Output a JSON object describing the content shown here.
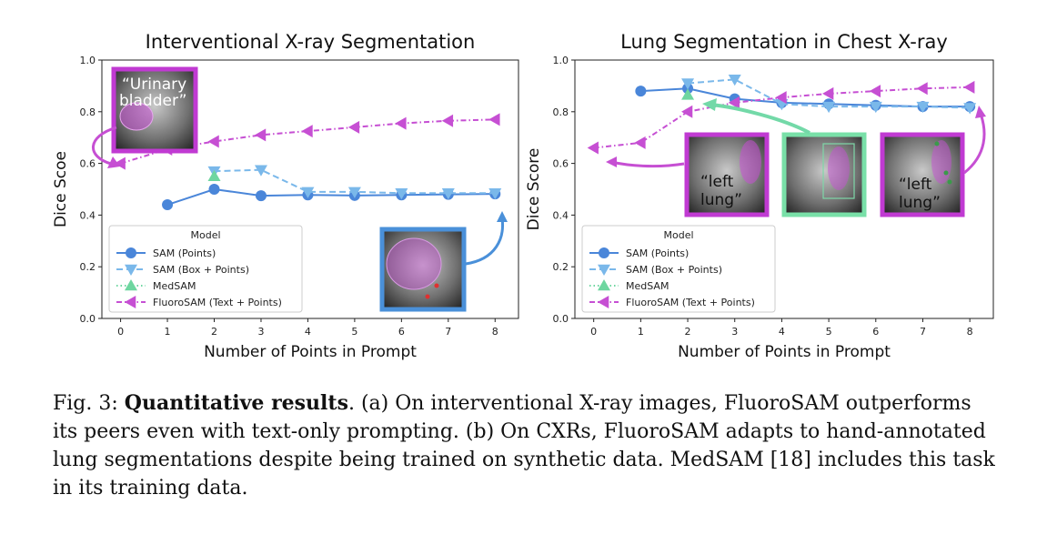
{
  "colors": {
    "sam_points": "#4a86d9",
    "sam_box": "#7ab8ea",
    "medsam": "#6ed6a0",
    "fluorosam": "#c64fd3",
    "green_arrow": "#73d9a8",
    "blue_frame": "#4a90d9",
    "purple_frame": "#c03ad2",
    "green_frame": "#79e0a8"
  },
  "chart_data": [
    {
      "type": "line",
      "title": "Interventional X-ray Segmentation",
      "xlabel": "Number of Points in Prompt",
      "ylabel": "Dice Scoe",
      "xlim": [
        -0.4,
        8.5
      ],
      "ylim": [
        0.0,
        1.0
      ],
      "xticks": [
        "0",
        "1",
        "2",
        "3",
        "4",
        "5",
        "6",
        "7",
        "8"
      ],
      "yticks": [
        "0.0",
        "0.2",
        "0.4",
        "0.6",
        "0.8",
        "1.0"
      ],
      "legend": {
        "title": "Model",
        "placement": "lower-left"
      },
      "series": [
        {
          "name": "SAM (Points)",
          "marker": "circle",
          "dash": "solid",
          "color_key": "sam_points",
          "x": [
            1,
            2,
            3,
            4,
            5,
            6,
            7,
            8
          ],
          "y": [
            0.44,
            0.5,
            0.475,
            0.478,
            0.476,
            0.478,
            0.48,
            0.482
          ]
        },
        {
          "name": "SAM (Box + Points)",
          "marker": "triangle-down",
          "dash": "dashed",
          "color_key": "sam_box",
          "x": [
            2,
            3,
            4,
            5,
            6,
            7,
            8
          ],
          "y": [
            0.57,
            0.575,
            0.49,
            0.49,
            0.485,
            0.485,
            0.485
          ]
        },
        {
          "name": "MedSAM",
          "marker": "triangle-up",
          "dash": "dotted",
          "color_key": "medsam",
          "x": [
            2
          ],
          "y": [
            0.55
          ]
        },
        {
          "name": "FluoroSAM (Text + Points)",
          "marker": "triangle-left",
          "dash": "dashdot",
          "color_key": "fluorosam",
          "x": [
            0,
            1,
            2,
            3,
            4,
            5,
            6,
            7,
            8
          ],
          "y": [
            0.6,
            0.655,
            0.685,
            0.71,
            0.725,
            0.74,
            0.755,
            0.765,
            0.77
          ]
        }
      ],
      "annotations": [
        {
          "label_lines": [
            "“Urinary",
            "bladder”"
          ]
        }
      ]
    },
    {
      "type": "line",
      "title": "Lung Segmentation in Chest X-ray",
      "xlabel": "Number of Points in Prompt",
      "ylabel": "Dice Score",
      "xlim": [
        -0.4,
        8.5
      ],
      "ylim": [
        0.0,
        1.0
      ],
      "xticks": [
        "0",
        "1",
        "2",
        "3",
        "4",
        "5",
        "6",
        "7",
        "8"
      ],
      "yticks": [
        "0.0",
        "0.2",
        "0.4",
        "0.6",
        "0.8",
        "1.0"
      ],
      "legend": {
        "title": "Model",
        "placement": "lower-left"
      },
      "series": [
        {
          "name": "SAM (Points)",
          "marker": "circle",
          "dash": "solid",
          "color_key": "sam_points",
          "x": [
            1,
            2,
            3,
            4,
            5,
            6,
            7,
            8
          ],
          "y": [
            0.88,
            0.89,
            0.85,
            0.835,
            0.83,
            0.825,
            0.82,
            0.82
          ]
        },
        {
          "name": "SAM (Box + Points)",
          "marker": "triangle-down",
          "dash": "dashed",
          "color_key": "sam_box",
          "x": [
            2,
            3,
            4,
            5,
            6,
            7,
            8
          ],
          "y": [
            0.91,
            0.925,
            0.83,
            0.82,
            0.82,
            0.82,
            0.815
          ]
        },
        {
          "name": "MedSAM",
          "marker": "triangle-up",
          "dash": "dotted",
          "color_key": "medsam",
          "x": [
            2
          ],
          "y": [
            0.865
          ]
        },
        {
          "name": "FluoroSAM (Text + Points)",
          "marker": "triangle-left",
          "dash": "dashdot",
          "color_key": "fluorosam",
          "x": [
            0,
            1,
            2,
            3,
            4,
            5,
            6,
            7,
            8
          ],
          "y": [
            0.66,
            0.68,
            0.8,
            0.835,
            0.855,
            0.87,
            0.88,
            0.89,
            0.895
          ]
        }
      ],
      "annotations": [
        {
          "label_lines": [
            "“left",
            "lung”"
          ]
        },
        {
          "label_lines": [
            "“left",
            "lung”"
          ]
        }
      ]
    }
  ],
  "caption": {
    "fig_label": "Fig. 3: ",
    "bold": "Quantitative results",
    "text": ". (a) On interventional X-ray images, FluoroSAM outperforms its peers even with text-only prompting. (b) On CXRs, FluoroSAM adapts to hand-annotated lung segmentations despite being trained on synthetic data. MedSAM [18] includes this task in its training data."
  }
}
